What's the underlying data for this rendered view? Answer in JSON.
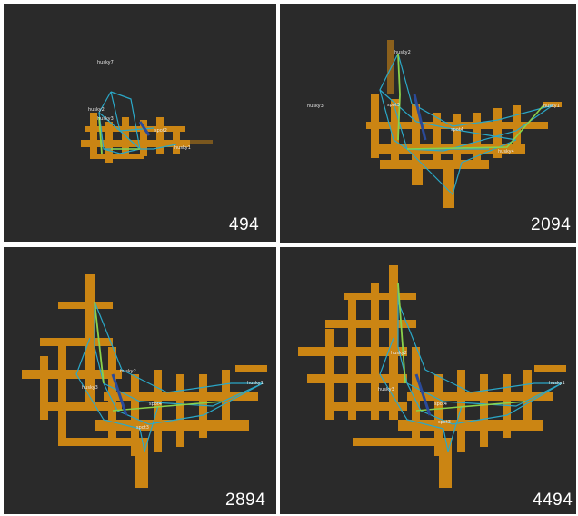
{
  "panels": [
    {
      "frame": "494",
      "labels": [
        "husky7",
        "husky2",
        "husky3",
        "spot2",
        "husky1"
      ],
      "map_coverage": 0.2
    },
    {
      "frame": "2094",
      "labels": [
        "husky2",
        "husky3",
        "spot3",
        "spot4",
        "husky1",
        "husky4"
      ],
      "map_coverage": 0.5
    },
    {
      "frame": "2894",
      "labels": [
        "husky2",
        "husky3",
        "spot4",
        "spot3",
        "husky1"
      ],
      "map_coverage": 0.8
    },
    {
      "frame": "4494",
      "labels": [
        "husky2",
        "husky3",
        "spot4",
        "spot3",
        "husky1"
      ],
      "map_coverage": 1.0
    }
  ],
  "colors": {
    "background": "#2a2a2a",
    "map": "#e8950f",
    "map_dark": "#b86e08",
    "edge": "#2aa8c8",
    "edge_bright": "#8ad24a",
    "edge_dark": "#2a4a9a",
    "divider": "#ffffff"
  }
}
